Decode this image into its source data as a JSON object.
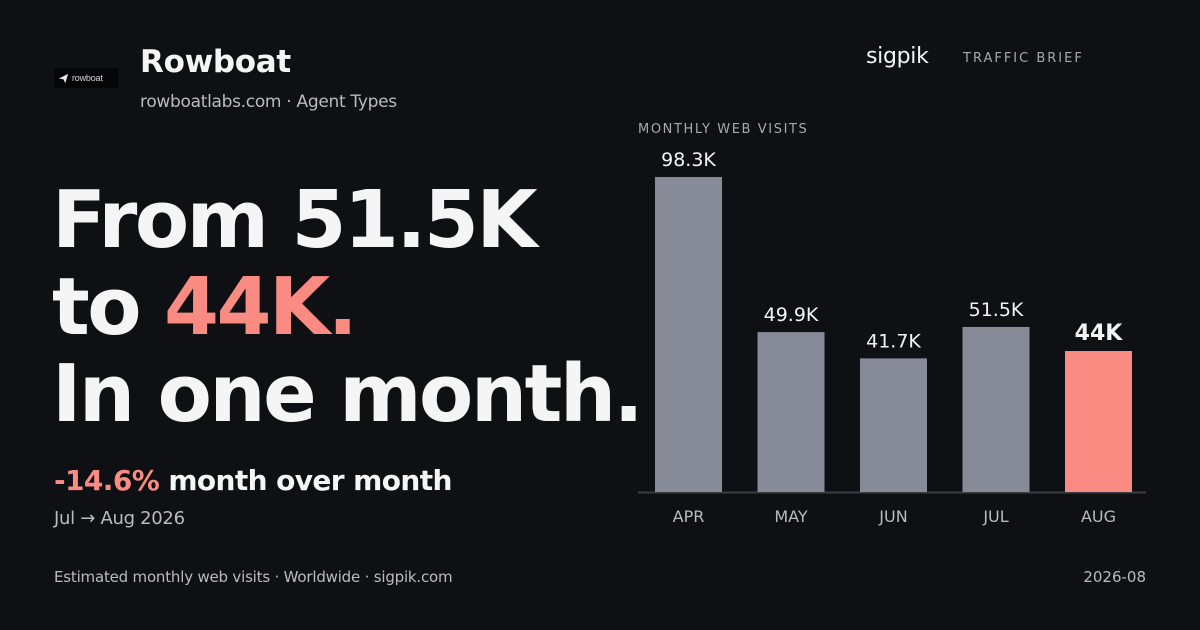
{
  "brand": {
    "logo_text": "rowboat",
    "title": "Rowboat",
    "subtitle": "rowboatlabs.com · Agent Types"
  },
  "header": {
    "site": "sigpik",
    "section": "TRAFFIC BRIEF"
  },
  "headline": {
    "line1": "From 51.5K",
    "line2_pre": "to ",
    "line2_accent": "44K.",
    "line3": "In one month."
  },
  "change": {
    "value": "-14.6%",
    "text": " month over month",
    "period": "Jul → Aug 2026"
  },
  "footer": {
    "source": "Estimated monthly web visits · Worldwide · sigpik.com",
    "date": "2026-08"
  },
  "colors": {
    "accent": "#f98b82",
    "bar": "#878b97",
    "axis": "#3a3d44",
    "background": "#0e1014"
  },
  "chart_data": {
    "type": "bar",
    "title": "MONTHLY WEB VISITS",
    "categories": [
      "APR",
      "MAY",
      "JUN",
      "JUL",
      "AUG"
    ],
    "values": [
      98300,
      49900,
      41700,
      51500,
      44000
    ],
    "labels": [
      "98.3K",
      "49.9K",
      "41.7K",
      "51.5K",
      "44K"
    ],
    "highlight_index": 4,
    "ylim": [
      0,
      98300
    ],
    "grid": false,
    "legend": "none"
  }
}
